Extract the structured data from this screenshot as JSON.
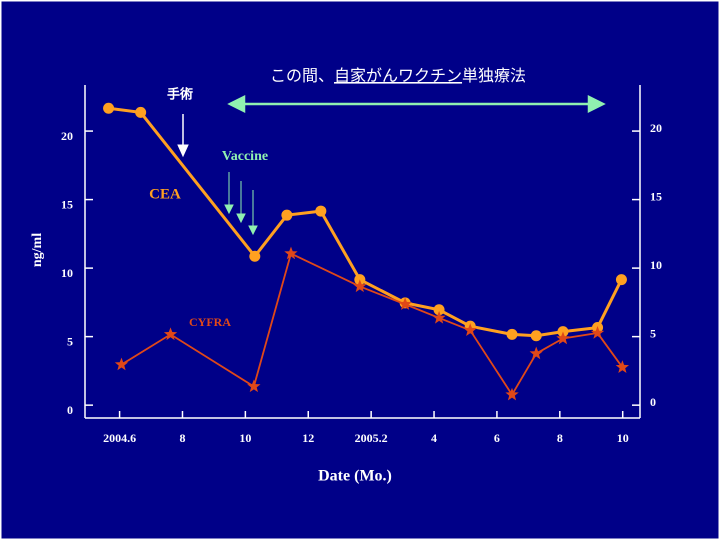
{
  "chart_data": {
    "type": "line",
    "annotations": {
      "period_a": "この間、",
      "period_b": "自家がんワクチン",
      "period_c": "単独療法",
      "surgery": "手術",
      "vaccine": "Vaccine"
    },
    "xlabel": "Date (Mo.)",
    "ylabel": "ng/ml",
    "xlim": [
      4.9,
      22.55
    ],
    "xticks": [
      {
        "value": 6,
        "label": "2004.6"
      },
      {
        "value": 8,
        "label": "8"
      },
      {
        "value": 10,
        "label": "10"
      },
      {
        "value": 12,
        "label": "12"
      },
      {
        "value": 14,
        "label": "2005.2"
      },
      {
        "value": 16,
        "label": "4"
      },
      {
        "value": 18,
        "label": "6"
      },
      {
        "value": 20,
        "label": "8"
      },
      {
        "value": 22,
        "label": "10"
      }
    ],
    "ylim": [
      -0.5,
      23.8
    ],
    "yticks": [
      0,
      5,
      10,
      15,
      20
    ],
    "series": [
      {
        "name": "CEA",
        "color": "#ffa020",
        "marker": "circle",
        "x": [
          5.65,
          6.67,
          10.3,
          11.32,
          12.4,
          13.64,
          15.08,
          16.16,
          17.15,
          18.48,
          19.25,
          20.1,
          21.2,
          21.96
        ],
        "values": [
          22.1,
          21.8,
          11.3,
          14.3,
          14.6,
          9.6,
          7.9,
          7.4,
          6.2,
          5.6,
          5.5,
          5.8,
          6.1,
          9.6
        ]
      },
      {
        "name": "CYFRA",
        "color": "#e04818",
        "marker": "star",
        "x": [
          6.06,
          7.62,
          10.27,
          11.45,
          13.64,
          15.08,
          16.16,
          17.15,
          18.48,
          19.25,
          20.1,
          21.2,
          21.99
        ],
        "values": [
          3.4,
          5.6,
          1.8,
          11.5,
          9.1,
          7.8,
          6.8,
          5.9,
          1.2,
          4.2,
          5.3,
          5.7,
          3.2
        ]
      }
    ]
  }
}
